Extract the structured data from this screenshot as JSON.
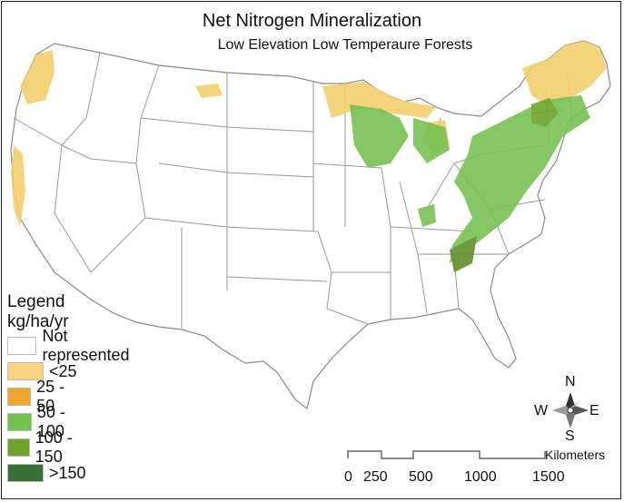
{
  "title": "Net Nitrogen Mineralization",
  "subtitle": "Low Elevation Low Temperaure Forests",
  "legend": {
    "heading": "Legend",
    "units": "kg/ha/yr",
    "items": [
      {
        "label": "Not represented",
        "color": "#ffffff"
      },
      {
        "label": "<25",
        "color": "#f7d27f"
      },
      {
        "label": "25 - 50",
        "color": "#eea62c"
      },
      {
        "label": "50 - 100",
        "color": "#74c150"
      },
      {
        "label": "100 - 150",
        "color": "#6ea22c"
      },
      {
        "label": ">150",
        "color": "#3a7037"
      }
    ]
  },
  "compass": {
    "north": "N",
    "south": "S",
    "east": "E",
    "west": "W"
  },
  "scale": {
    "units": "Kilometers",
    "ticks": [
      "0",
      "250",
      "500",
      "1000",
      "1500"
    ]
  },
  "map_colors": {
    "state_border": "#9a9a9a",
    "land": "#ffffff"
  }
}
